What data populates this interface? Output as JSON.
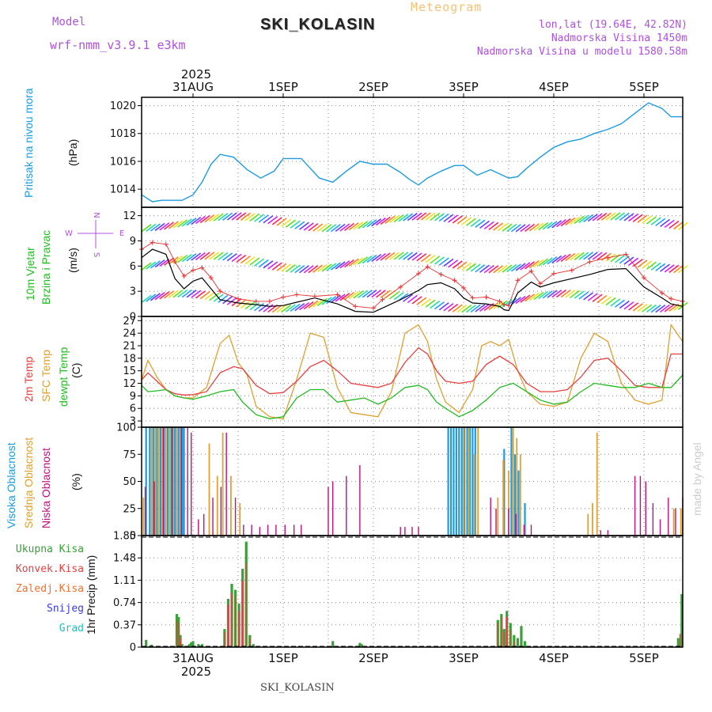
{
  "header": {
    "meteogram_label": "Meteogram",
    "model_label": "Model",
    "model_name": "wrf-nmm_v3.9.1 e3km",
    "station": "SKI_KOLASIN",
    "lonlat": "lon,lat (19.64E, 42.82N)",
    "elevation": "Nadmorska Visina 1450m",
    "model_elevation": "Nadmorska Visina u modelu 1580.58m",
    "footer_station": "SKI_KOLASIN",
    "watermark": "made by Angel"
  },
  "time_axis": {
    "year": "2025",
    "date_labels": [
      "31AUG",
      "1SEP",
      "2SEP",
      "3SEP",
      "4SEP",
      "5SEP"
    ],
    "start_day_offset": -0.57,
    "end_day_offset": 5.43
  },
  "colors": {
    "pressure": "#1e9be0",
    "temp2m": "#e84040",
    "sfc_temp": "#e0a030",
    "dewpt": "#22bb22",
    "wind_mean": "#000000",
    "wind_gust": "#e83030",
    "high_cloud": "#1e9be0",
    "mid_cloud": "#e0a030",
    "low_cloud": "#c0107c",
    "total_precip": "#3aa03a",
    "conv_precip": "#e84040",
    "frozen_precip": "#f07030",
    "snow": "#3a3ae0",
    "hail": "#20c0c0"
  },
  "panels": {
    "pressure": {
      "label": "Pritisak na nivou mora",
      "unit": "(hPa)",
      "ticks": [
        "1014",
        "1016",
        "1018",
        "1020"
      ]
    },
    "wind": {
      "label1": "10m Vjetar",
      "label2": "Brzina i Pravac",
      "unit": "(m/s)",
      "ticks": [
        "0",
        "3",
        "6",
        "9",
        "12"
      ],
      "compass_n": "N",
      "compass_w": "W",
      "compass_e": "E",
      "compass_s": "S"
    },
    "temp": {
      "label1": "2m Temp",
      "label2": "SFC Temp",
      "label3": "dewpt Temp",
      "unit": "(C)",
      "ticks": [
        "3",
        "6",
        "9",
        "12",
        "15",
        "18",
        "21",
        "24",
        "27"
      ]
    },
    "cloud": {
      "label1": "Visoka Oblacnost",
      "label2": "Srednja Oblacnost",
      "label3": "Niska Oblacnost",
      "unit": "(%)",
      "ticks": [
        "0",
        "25",
        "50",
        "75",
        "100"
      ]
    },
    "precip": {
      "unit": "1hr Precip (mm)",
      "ticks": [
        "0",
        "0.37",
        "0.74",
        "1.11",
        "1.48",
        "1.85"
      ],
      "legend": [
        "Ukupna Kisa",
        "Konvek.Kisa",
        "Zaledj.Kisa",
        "Snijeg",
        "Grad"
      ]
    }
  },
  "chart_data": [
    {
      "type": "line",
      "title": "Pritisak na nivou mora",
      "ylabel": "(hPa)",
      "ylim": [
        1012.7,
        1020.6
      ],
      "x_unit": "days from 1SEP 00UTC",
      "series": [
        {
          "name": "Pressure",
          "x": [
            -0.57,
            -0.45,
            -0.35,
            -0.25,
            -0.12,
            0.0,
            0.1,
            0.2,
            0.3,
            0.45,
            0.6,
            0.75,
            0.9,
            1.0,
            1.2,
            1.4,
            1.55,
            1.7,
            1.85,
            2.0,
            2.15,
            2.3,
            2.4,
            2.5,
            2.6,
            2.75,
            2.9,
            3.0,
            3.15,
            3.3,
            3.5,
            3.6,
            3.7,
            3.85,
            4.0,
            4.15,
            4.3,
            4.45,
            4.6,
            4.75,
            4.85,
            4.95,
            5.05,
            5.2,
            5.3,
            5.43
          ],
          "values": [
            1013.6,
            1013.1,
            1013.2,
            1013.2,
            1013.2,
            1013.6,
            1014.5,
            1015.8,
            1016.5,
            1016.3,
            1015.4,
            1014.8,
            1015.3,
            1016.2,
            1016.2,
            1014.8,
            1014.5,
            1015.3,
            1016.0,
            1015.8,
            1015.8,
            1015.2,
            1014.7,
            1014.3,
            1014.8,
            1015.3,
            1015.7,
            1015.7,
            1015.0,
            1015.4,
            1014.8,
            1014.9,
            1015.5,
            1016.3,
            1017.0,
            1017.4,
            1017.6,
            1018.0,
            1018.3,
            1018.7,
            1019.2,
            1019.7,
            1020.2,
            1019.8,
            1019.2,
            1019.2
          ]
        }
      ]
    },
    {
      "type": "line",
      "title": "10m Vjetar Brzina i Pravac",
      "ylabel": "(m/s)",
      "ylim": [
        0,
        13
      ],
      "x_unit": "days from 1SEP 00UTC",
      "series": [
        {
          "name": "Wind speed",
          "x": [
            -0.57,
            -0.45,
            -0.3,
            -0.2,
            -0.1,
            0.0,
            0.1,
            0.2,
            0.3,
            0.5,
            0.7,
            0.85,
            1.0,
            1.15,
            1.35,
            1.6,
            1.8,
            2.0,
            2.1,
            2.3,
            2.5,
            2.6,
            2.75,
            2.9,
            3.0,
            3.1,
            3.25,
            3.4,
            3.45,
            3.5,
            3.6,
            3.75,
            3.85,
            4.0,
            4.2,
            4.4,
            4.6,
            4.8,
            5.0,
            5.2,
            5.3,
            5.43
          ],
          "values": [
            7.0,
            8.0,
            7.4,
            4.5,
            3.3,
            4.2,
            4.6,
            3.3,
            2.0,
            1.6,
            1.4,
            1.2,
            1.3,
            1.7,
            2.2,
            1.5,
            0.6,
            0.5,
            1.0,
            2.0,
            3.1,
            3.8,
            4.0,
            3.3,
            2.2,
            1.6,
            1.5,
            1.2,
            0.8,
            0.7,
            2.8,
            4.1,
            3.5,
            4.0,
            4.5,
            5.0,
            5.6,
            5.7,
            3.5,
            2.2,
            1.5,
            1.2
          ]
        },
        {
          "name": "Wind gust",
          "x": [
            -0.57,
            -0.45,
            -0.3,
            -0.2,
            -0.1,
            0.0,
            0.1,
            0.2,
            0.3,
            0.5,
            0.7,
            0.85,
            1.0,
            1.15,
            1.35,
            1.6,
            1.8,
            2.0,
            2.1,
            2.3,
            2.5,
            2.6,
            2.75,
            2.9,
            3.0,
            3.1,
            3.25,
            3.4,
            3.45,
            3.5,
            3.6,
            3.75,
            3.85,
            4.0,
            4.2,
            4.4,
            4.6,
            4.8,
            5.0,
            5.2,
            5.3,
            5.43
          ],
          "values": [
            8.0,
            8.8,
            8.6,
            6.5,
            4.8,
            5.5,
            5.8,
            4.6,
            3.0,
            2.1,
            1.8,
            1.8,
            2.3,
            2.6,
            2.4,
            2.6,
            1.2,
            1.0,
            2.0,
            3.5,
            5.1,
            5.9,
            5.0,
            4.3,
            3.4,
            2.2,
            2.3,
            1.8,
            1.4,
            1.3,
            4.3,
            5.4,
            3.9,
            5.1,
            5.5,
            6.5,
            7.0,
            7.4,
            4.6,
            2.8,
            2.1,
            1.8
          ]
        }
      ]
    },
    {
      "type": "line",
      "title": "2m Temp / SFC Temp / dewpt Temp",
      "ylabel": "(C)",
      "ylim": [
        1.5,
        28
      ],
      "x_unit": "days from 1SEP 00UTC",
      "series": [
        {
          "name": "2m Temp",
          "x": [
            -0.57,
            -0.5,
            -0.4,
            -0.3,
            -0.2,
            -0.1,
            0.0,
            0.15,
            0.3,
            0.45,
            0.55,
            0.7,
            0.85,
            1.0,
            1.15,
            1.3,
            1.45,
            1.6,
            1.75,
            1.9,
            2.05,
            2.2,
            2.35,
            2.5,
            2.6,
            2.7,
            2.8,
            2.95,
            3.1,
            3.25,
            3.4,
            3.55,
            3.7,
            3.85,
            4.0,
            4.15,
            4.3,
            4.45,
            4.6,
            4.75,
            4.9,
            5.05,
            5.2,
            5.3,
            5.43
          ],
          "values": [
            12.8,
            14.5,
            12.5,
            10.5,
            9.5,
            9.2,
            9.3,
            10.0,
            14.5,
            16.0,
            15.5,
            11.5,
            9.5,
            9.8,
            12.5,
            16.0,
            17.5,
            15.0,
            12.0,
            11.5,
            11.0,
            12.0,
            17.0,
            20.5,
            19.0,
            15.0,
            12.5,
            12.0,
            12.5,
            16.5,
            18.5,
            16.5,
            12.0,
            10.0,
            10.0,
            10.5,
            13.5,
            17.5,
            18.0,
            15.0,
            11.5,
            11.0,
            11.0,
            19.0,
            19.0
          ]
        },
        {
          "name": "SFC Temp",
          "x": [
            -0.57,
            -0.5,
            -0.4,
            -0.3,
            -0.2,
            -0.1,
            0.0,
            0.15,
            0.3,
            0.4,
            0.5,
            0.6,
            0.7,
            0.85,
            1.0,
            1.15,
            1.3,
            1.45,
            1.6,
            1.75,
            1.9,
            2.05,
            2.2,
            2.35,
            2.5,
            2.6,
            2.7,
            2.8,
            2.95,
            3.1,
            3.2,
            3.3,
            3.4,
            3.5,
            3.6,
            3.7,
            3.85,
            4.0,
            4.15,
            4.3,
            4.45,
            4.6,
            4.75,
            4.9,
            5.05,
            5.2,
            5.3,
            5.43
          ],
          "values": [
            12.8,
            17.5,
            13.5,
            10.5,
            9.0,
            8.5,
            8.5,
            11.0,
            21.5,
            23.5,
            17.0,
            14.0,
            6.5,
            4.0,
            3.5,
            13.0,
            24.0,
            23.0,
            11.0,
            5.0,
            4.5,
            4.0,
            10.0,
            24.0,
            26.0,
            22.0,
            13.0,
            7.5,
            5.0,
            10.5,
            21.0,
            22.0,
            21.0,
            22.5,
            15.0,
            10.0,
            7.0,
            6.5,
            7.5,
            18.0,
            24.0,
            22.0,
            12.0,
            8.0,
            7.0,
            8.0,
            26.0,
            22.0
          ]
        },
        {
          "name": "dewpt Temp",
          "x": [
            -0.57,
            -0.5,
            -0.4,
            -0.3,
            -0.2,
            -0.1,
            0.0,
            0.15,
            0.3,
            0.45,
            0.55,
            0.7,
            0.85,
            1.0,
            1.15,
            1.3,
            1.45,
            1.6,
            1.75,
            1.9,
            2.05,
            2.2,
            2.35,
            2.5,
            2.6,
            2.7,
            2.8,
            2.95,
            3.1,
            3.25,
            3.4,
            3.55,
            3.7,
            3.85,
            4.0,
            4.15,
            4.3,
            4.45,
            4.6,
            4.75,
            4.9,
            5.05,
            5.2,
            5.3,
            5.43
          ],
          "values": [
            11.5,
            10.0,
            10.2,
            10.5,
            9.0,
            8.5,
            8.2,
            9.0,
            10.0,
            10.5,
            7.5,
            4.5,
            3.5,
            4.0,
            8.5,
            10.5,
            10.5,
            7.5,
            8.0,
            8.5,
            7.0,
            8.5,
            11.0,
            11.5,
            10.5,
            7.5,
            6.0,
            4.0,
            5.5,
            8.0,
            11.0,
            12.0,
            10.0,
            8.0,
            7.0,
            7.5,
            10.0,
            12.0,
            11.5,
            11.0,
            11.0,
            12.0,
            11.0,
            11.0,
            14.0
          ]
        }
      ]
    },
    {
      "type": "bar",
      "title": "Oblacnost (Visoka / Srednja / Niska)",
      "ylabel": "(%)",
      "ylim": [
        0,
        100
      ],
      "x_unit": "days from 1SEP 00UTC",
      "series": [
        {
          "name": "Visoka Oblacnost",
          "x": [
            -0.52,
            -0.48,
            -0.44,
            -0.4,
            -0.36,
            -0.32,
            -0.28,
            -0.24,
            -0.2,
            -0.16,
            -0.12,
            -0.1,
            2.83,
            2.86,
            2.89,
            2.92,
            2.95,
            2.98,
            3.01,
            3.04,
            3.07,
            3.1,
            3.13,
            3.45,
            3.53,
            3.57,
            3.61,
            3.68
          ],
          "values": [
            100,
            100,
            100,
            100,
            100,
            100,
            100,
            100,
            100,
            100,
            100,
            100,
            100,
            100,
            100,
            100,
            100,
            100,
            100,
            100,
            100,
            100,
            100,
            80,
            100,
            75,
            60,
            30
          ]
        },
        {
          "name": "Srednja Oblacnost",
          "x": [
            -0.55,
            -0.46,
            -0.42,
            -0.38,
            -0.34,
            -0.3,
            -0.26,
            -0.22,
            -0.18,
            -0.14,
            0.18,
            0.27,
            0.33,
            0.42,
            0.52,
            3.0,
            3.06,
            3.12,
            3.16,
            3.38,
            3.44,
            3.5,
            3.55,
            3.59,
            3.63,
            4.38,
            4.43,
            4.48,
            5.33,
            5.41
          ],
          "values": [
            35,
            100,
            100,
            100,
            100,
            100,
            100,
            100,
            100,
            100,
            85,
            55,
            95,
            55,
            30,
            100,
            100,
            75,
            100,
            35,
            70,
            60,
            100,
            90,
            75,
            20,
            30,
            95,
            25,
            25
          ]
        },
        {
          "name": "Niska Oblacnost",
          "x": [
            -0.53,
            -0.43,
            -0.33,
            -0.23,
            -0.13,
            -0.06,
            -0.02,
            0.06,
            0.12,
            0.22,
            0.31,
            0.37,
            0.47,
            0.56,
            0.65,
            0.74,
            0.83,
            0.92,
            1.02,
            1.12,
            1.2,
            1.5,
            1.55,
            1.7,
            1.85,
            2.3,
            2.35,
            2.43,
            2.5,
            3.3,
            3.36,
            3.5,
            3.58,
            3.67,
            3.75,
            4.52,
            4.6,
            4.9,
            4.96,
            5.02,
            5.1,
            5.18,
            5.27,
            5.35,
            5.43
          ],
          "values": [
            45,
            50,
            100,
            100,
            100,
            100,
            95,
            15,
            20,
            35,
            45,
            95,
            35,
            10,
            10,
            8,
            10,
            10,
            10,
            10,
            10,
            45,
            50,
            55,
            65,
            8,
            8,
            8,
            8,
            35,
            25,
            25,
            20,
            10,
            10,
            5,
            5,
            55,
            55,
            50,
            30,
            15,
            35,
            25,
            35
          ]
        }
      ]
    },
    {
      "type": "bar",
      "title": "1hr Precip (mm)",
      "ylabel": "1hr Precip (mm)",
      "ylim": [
        0,
        1.85
      ],
      "x_unit": "days from 1SEP 00UTC",
      "series": [
        {
          "name": "Ukupna Kisa",
          "x": [
            -0.52,
            -0.46,
            -0.18,
            -0.16,
            -0.14,
            -0.12,
            -0.04,
            -0.02,
            0.0,
            0.06,
            0.1,
            0.35,
            0.39,
            0.43,
            0.47,
            0.51,
            0.55,
            0.59,
            0.63,
            0.67,
            1.55,
            1.85,
            1.87,
            3.38,
            3.42,
            3.45,
            3.48,
            3.52,
            3.56,
            3.6,
            3.64,
            3.68,
            5.38,
            5.42
          ],
          "values": [
            0.12,
            0.04,
            0.55,
            0.5,
            0.2,
            0.05,
            0.05,
            0.08,
            0.1,
            0.05,
            0.05,
            0.3,
            0.8,
            1.05,
            0.95,
            0.72,
            1.3,
            1.75,
            0.2,
            0.05,
            0.1,
            0.07,
            0.05,
            0.45,
            0.55,
            0.3,
            0.6,
            0.4,
            0.2,
            0.15,
            0.35,
            0.1,
            0.15,
            0.88
          ]
        },
        {
          "name": "Konvek.Kisa",
          "x": [
            -0.18,
            -0.16,
            -0.14,
            0.35,
            0.39,
            0.43,
            0.47,
            0.51,
            0.55,
            0.59,
            0.63,
            3.38,
            3.42,
            3.45,
            3.48,
            3.52,
            3.56,
            5.4
          ],
          "values": [
            0.45,
            0.4,
            0.15,
            0.25,
            0.7,
            0.9,
            0.85,
            0.6,
            1.1,
            1.4,
            0.15,
            0.4,
            0.5,
            0.25,
            0.5,
            0.3,
            0.1,
            0.22
          ]
        }
      ]
    }
  ]
}
